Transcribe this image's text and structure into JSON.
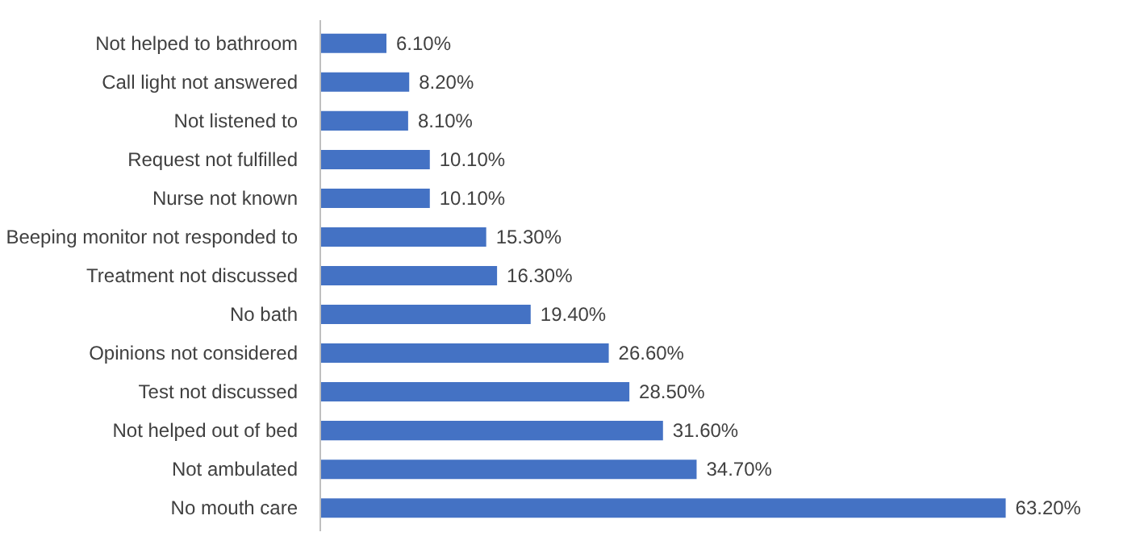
{
  "chart_data": {
    "type": "bar",
    "orientation": "horizontal",
    "color": "#4472c4",
    "categories": [
      "Not helped to bathroom",
      "Call light not answered",
      "Not listened to",
      "Request not fulfilled",
      "Nurse not known",
      "Beeping monitor not responded to",
      "Treatment not discussed",
      "No bath",
      "Opinions not considered",
      "Test not discussed",
      "Not helped out of bed",
      "Not ambulated",
      "No mouth care"
    ],
    "values": [
      6.1,
      8.2,
      8.1,
      10.1,
      10.1,
      15.3,
      16.3,
      19.4,
      26.6,
      28.5,
      31.6,
      34.7,
      63.2
    ],
    "value_labels": [
      "6.10%",
      "8.20%",
      "8.10%",
      "10.10%",
      "10.10%",
      "15.30%",
      "16.30%",
      "19.40%",
      "26.60%",
      "28.50%",
      "31.60%",
      "34.70%",
      "63.20%"
    ],
    "tick_labels": "y",
    "grid": false
  }
}
